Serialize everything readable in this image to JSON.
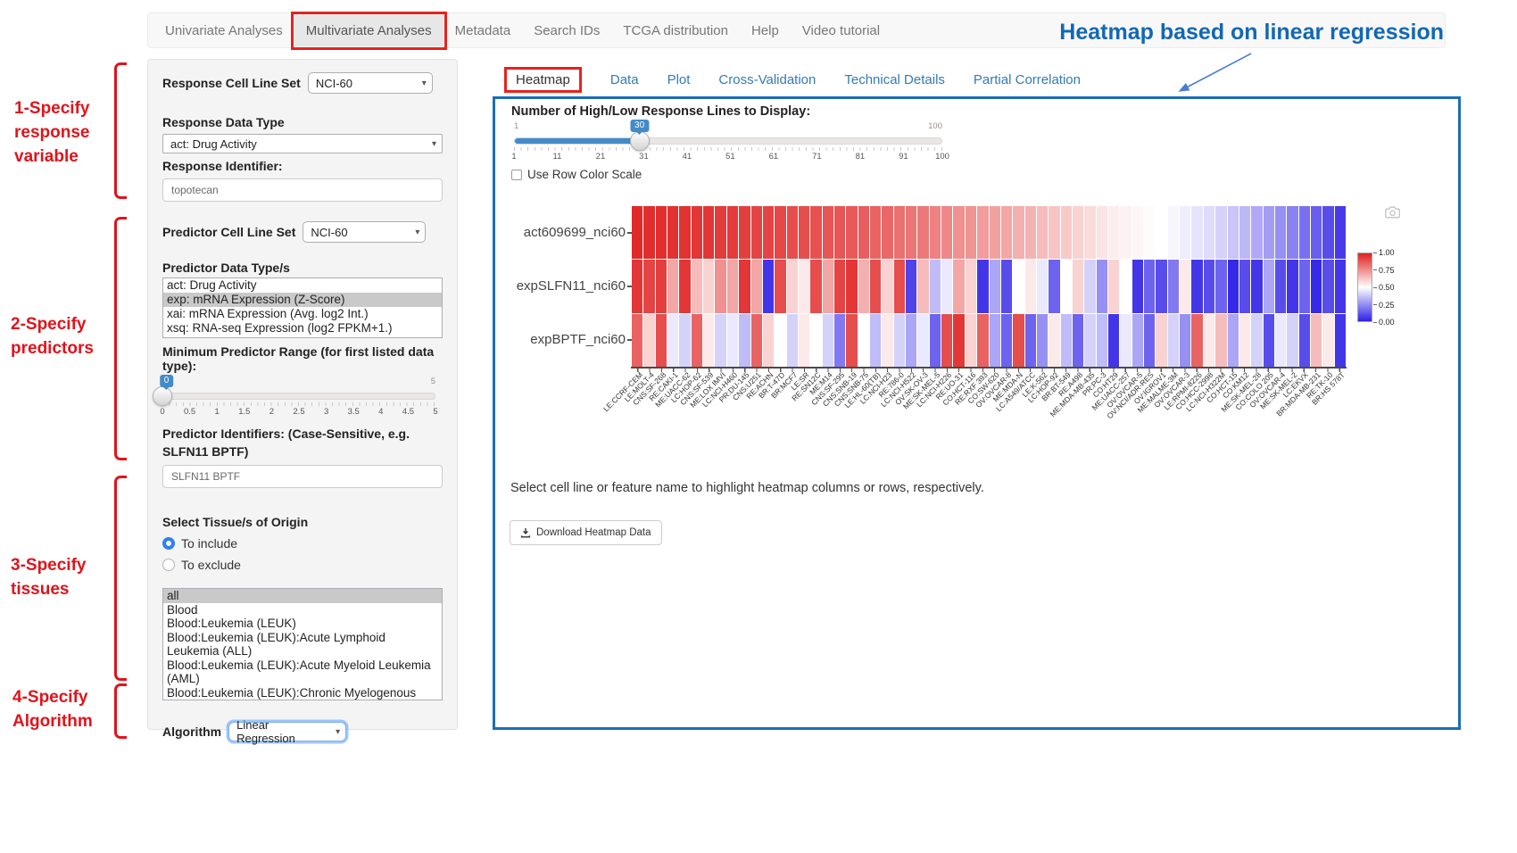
{
  "nav": {
    "items": [
      {
        "label": "Univariate Analyses"
      },
      {
        "label": "Multivariate Analyses",
        "active": true,
        "red_box": true
      },
      {
        "label": "Metadata"
      },
      {
        "label": "Search IDs"
      },
      {
        "label": "TCGA distribution"
      },
      {
        "label": "Help"
      },
      {
        "label": "Video tutorial"
      }
    ]
  },
  "annotation": {
    "heading": "Heatmap based on linear regression",
    "heading_color": "#1268b3",
    "accent_red": "#e0131b",
    "steps": [
      {
        "label": "1-Specify\nresponse\nvariable"
      },
      {
        "label": "2-Specify\npredictors"
      },
      {
        "label": "3-Specify\ntissues"
      },
      {
        "label": "4-Specify\nAlgorithm"
      }
    ]
  },
  "icons": {
    "chevron_char": "▾",
    "camera": "camera-icon",
    "download": "download-icon"
  },
  "sidebar": {
    "response_cell_line_set": {
      "label": "Response Cell Line Set",
      "value": "NCI-60"
    },
    "response_data_type": {
      "label": "Response Data Type",
      "value": "act: Drug Activity"
    },
    "response_identifier": {
      "label": "Response Identifier:",
      "value": "topotecan"
    },
    "predictor_cell_line_set": {
      "label": "Predictor Cell Line Set",
      "value": "NCI-60"
    },
    "predictor_data_types": {
      "label": "Predictor Data Type/s",
      "options": [
        "act: Drug Activity",
        "exp: mRNA Expression (Z-Score)",
        "xai: mRNA Expression (Avg. log2 Int.)",
        "xsq: RNA-seq Expression (log2 FPKM+1.)"
      ],
      "selected_index": 1
    },
    "min_predictor_range": {
      "label": "Minimum Predictor Range (for first listed data type):",
      "value": "0",
      "min": 0,
      "max": 5,
      "max_label": "5",
      "ticks": [
        "0",
        "0.5",
        "1",
        "1.5",
        "2",
        "2.5",
        "3",
        "3.5",
        "4",
        "4.5",
        "5"
      ]
    },
    "predictor_identifiers": {
      "label": "Predictor Identifiers: (Case-Sensitive, e.g. SLFN11 BPTF)",
      "value": "SLFN11 BPTF"
    },
    "tissue": {
      "label": "Select Tissue/s of Origin",
      "include_label": "To include",
      "exclude_label": "To exclude",
      "include_selected": true,
      "options": [
        "all",
        "Blood",
        "Blood:Leukemia (LEUK)",
        "Blood:Leukemia (LEUK):Acute Lymphoid Leukemia (ALL)",
        "Blood:Leukemia (LEUK):Acute Myeloid Leukemia (AML)",
        "Blood:Leukemia (LEUK):Chronic Myelogenous Leukemia (CML)"
      ],
      "selected_index": 0
    },
    "algorithm": {
      "label": "Algorithm",
      "value": "Linear Regression"
    }
  },
  "main": {
    "tabs": [
      {
        "label": "Heatmap",
        "active": true,
        "red_box": true
      },
      {
        "label": "Data"
      },
      {
        "label": "Plot"
      },
      {
        "label": "Cross-Validation"
      },
      {
        "label": "Technical Details"
      },
      {
        "label": "Partial Correlation"
      }
    ],
    "slider": {
      "title": "Number of High/Low Response Lines to Display:",
      "min_label": "1",
      "max_label": "100",
      "value": "30",
      "min": 1,
      "max": 100,
      "ticks": [
        "1",
        "11",
        "21",
        "31",
        "41",
        "51",
        "61",
        "71",
        "81",
        "91",
        "100"
      ]
    },
    "row_scale_checkbox": {
      "label": "Use Row Color Scale",
      "checked": false
    },
    "note": "Select cell line or feature name to highlight heatmap columns or rows, respectively.",
    "download_label": "Download Heatmap Data"
  },
  "chart_data": {
    "type": "heatmap",
    "title": "",
    "rows": [
      "act609699_nci60",
      "expSLFN11_nci60",
      "expBPTF_nci60"
    ],
    "columns": [
      "LE:CCRF-CEM",
      "LE:MOLT-4",
      "CNS:SF-268",
      "RE:CAKI-1",
      "ME:UACC-62",
      "LC:HOP-62",
      "CNS:SF-539",
      "ME:LOX IMVI",
      "LC:NCI-H460",
      "PR:DU-145",
      "CNS:U251",
      "RE:ACHN",
      "BR:T-47D",
      "BR:MCF7",
      "LE:SR",
      "RE:SN12C",
      "ME:M14",
      "CNS:SF-295",
      "CNS:SNB-19",
      "CNS:SNB-75",
      "LE:HL-60(TB)",
      "LC:NCI-H23",
      "RE:786-0",
      "LC:NCI-H522",
      "OV:SK-OV-3",
      "ME:SK-MEL-5",
      "LC:NCI-H226",
      "RE:UO-31",
      "CO:HCT-116",
      "RE:RXF 393",
      "CO:SW-620",
      "OV:OVCAR-8",
      "ME:MDA-N",
      "LC:A549/ATCC",
      "LE:K-562",
      "LC:HOP-92",
      "BR:BT-549",
      "RE:A498",
      "ME:MDA-MB-435",
      "PR:PC-3",
      "CO:HT29",
      "ME:UACC-257",
      "OV:OVCAR-5",
      "OV:NCI/ADR-RES",
      "OV:IGROV1",
      "ME:MALME-3M",
      "OV:OVCAR-3",
      "LE:RPMI-8226",
      "CO:HCC-2998",
      "LC:NCI-H322M",
      "CO:HCT-15",
      "CO:KM12",
      "ME:SK-MEL-28",
      "CO:COLO 205",
      "OV:OVCAR-4",
      "ME:SK-MEL-2",
      "LC:EKVX",
      "BR:MDA-MB-231",
      "RE:TK-10",
      "BR:HS 578T"
    ],
    "values": [
      [
        0.98,
        0.97,
        0.97,
        0.96,
        0.96,
        0.95,
        0.95,
        0.94,
        0.94,
        0.93,
        0.92,
        0.92,
        0.91,
        0.9,
        0.9,
        0.89,
        0.88,
        0.88,
        0.87,
        0.86,
        0.85,
        0.84,
        0.82,
        0.81,
        0.8,
        0.78,
        0.77,
        0.75,
        0.74,
        0.72,
        0.71,
        0.7,
        0.68,
        0.67,
        0.65,
        0.63,
        0.62,
        0.6,
        0.58,
        0.56,
        0.54,
        0.53,
        0.52,
        0.51,
        0.5,
        0.48,
        0.46,
        0.44,
        0.42,
        0.4,
        0.37,
        0.34,
        0.31,
        0.28,
        0.25,
        0.22,
        0.18,
        0.14,
        0.1,
        0.06
      ],
      [
        0.95,
        0.92,
        0.93,
        0.7,
        0.95,
        0.65,
        0.6,
        0.75,
        0.7,
        0.95,
        0.7,
        0.05,
        0.9,
        0.6,
        0.55,
        0.9,
        0.7,
        0.92,
        0.95,
        0.68,
        0.9,
        0.6,
        0.9,
        0.08,
        0.65,
        0.35,
        0.45,
        0.7,
        0.6,
        0.05,
        0.3,
        0.1,
        0.5,
        0.55,
        0.45,
        0.15,
        0.5,
        0.6,
        0.4,
        0.25,
        0.6,
        0.5,
        0.05,
        0.15,
        0.1,
        0.2,
        0.55,
        0.05,
        0.1,
        0.15,
        0.02,
        0.1,
        0.05,
        0.3,
        0.1,
        0.05,
        0.15,
        0.02,
        0.1,
        0.05
      ],
      [
        0.85,
        0.6,
        0.9,
        0.45,
        0.4,
        0.85,
        0.55,
        0.4,
        0.45,
        0.35,
        0.85,
        0.6,
        0.5,
        0.4,
        0.55,
        0.5,
        0.4,
        0.2,
        0.9,
        0.5,
        0.35,
        0.55,
        0.4,
        0.3,
        0.45,
        0.15,
        0.9,
        0.95,
        0.6,
        0.85,
        0.3,
        0.15,
        0.9,
        0.15,
        0.25,
        0.55,
        0.35,
        0.15,
        0.4,
        0.35,
        0.05,
        0.45,
        0.3,
        0.15,
        0.6,
        0.4,
        0.25,
        0.85,
        0.55,
        0.65,
        0.3,
        0.55,
        0.4,
        0.1,
        0.45,
        0.4,
        0.1,
        0.65,
        0.55,
        0.05
      ]
    ],
    "colorscale": {
      "high_color": "#e02020",
      "mid_color": "#ffffff",
      "low_color": "#2e20e6",
      "range": [
        0,
        1
      ],
      "ticks": [
        "1.00",
        "0.75",
        "0.50",
        "0.25",
        "0.00"
      ]
    },
    "legend_position": "right",
    "x_tick_angle": -45
  }
}
